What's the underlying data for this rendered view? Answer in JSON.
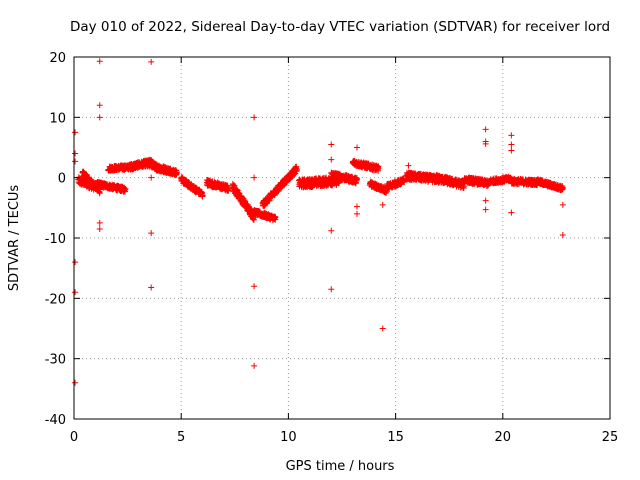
{
  "chart_data": {
    "type": "scatter",
    "title": "Day 010 of 2022, Sidereal Day-to-day VTEC variation (SDTVAR) for receiver lord",
    "xlabel": "GPS time / hours",
    "ylabel": "SDTVAR / TECUs",
    "xlim": [
      0,
      25
    ],
    "ylim": [
      -40,
      20
    ],
    "xticks": [
      0,
      5,
      10,
      15,
      20,
      25
    ],
    "yticks": [
      -40,
      -30,
      -20,
      -10,
      0,
      10,
      20
    ],
    "grid": true,
    "marker": "+",
    "color": "#ff0000",
    "series": [
      {
        "name": "SDTVAR",
        "segments": [
          {
            "x0": 0.2,
            "x1": 1.0,
            "y0": -0.5,
            "y1": -1.5,
            "spread": 1.2
          },
          {
            "x0": 0.4,
            "x1": 1.2,
            "y0": 0.8,
            "y1": -2.2,
            "spread": 0.8
          },
          {
            "x0": 1.0,
            "x1": 2.4,
            "y0": -1.0,
            "y1": -2.0,
            "spread": 0.8
          },
          {
            "x0": 1.6,
            "x1": 2.8,
            "y0": 1.5,
            "y1": 1.8,
            "spread": 0.8
          },
          {
            "x0": 2.6,
            "x1": 3.7,
            "y0": 1.8,
            "y1": 2.6,
            "spread": 1.0
          },
          {
            "x0": 3.4,
            "x1": 4.8,
            "y0": 2.3,
            "y1": 0.8,
            "spread": 0.9
          },
          {
            "x0": 3.8,
            "x1": 4.5,
            "y0": 1.5,
            "y1": 1.0,
            "spread": 0.7
          },
          {
            "x0": 5.0,
            "x1": 6.0,
            "y0": -0.3,
            "y1": -2.8,
            "spread": 0.9
          },
          {
            "x0": 6.2,
            "x1": 7.2,
            "y0": -0.8,
            "y1": -1.8,
            "spread": 1.0
          },
          {
            "x0": 7.4,
            "x1": 8.4,
            "y0": -1.5,
            "y1": -6.5,
            "spread": 1.2
          },
          {
            "x0": 8.2,
            "x1": 9.4,
            "y0": -5.5,
            "y1": -6.8,
            "spread": 0.8
          },
          {
            "x0": 8.8,
            "x1": 10.4,
            "y0": -4.5,
            "y1": 1.5,
            "spread": 1.0
          },
          {
            "x0": 10.5,
            "x1": 12.4,
            "y0": -1.0,
            "y1": -0.5,
            "spread": 1.4
          },
          {
            "x0": 12.0,
            "x1": 13.2,
            "y0": 0.5,
            "y1": -0.5,
            "spread": 1.0
          },
          {
            "x0": 13.0,
            "x1": 14.2,
            "y0": 2.5,
            "y1": 1.5,
            "spread": 0.9
          },
          {
            "x0": 13.8,
            "x1": 14.6,
            "y0": -1.0,
            "y1": -2.2,
            "spread": 0.8
          },
          {
            "x0": 14.6,
            "x1": 15.4,
            "y0": -1.5,
            "y1": -0.5,
            "spread": 0.9
          },
          {
            "x0": 15.5,
            "x1": 17.0,
            "y0": 0.3,
            "y1": -0.3,
            "spread": 1.2
          },
          {
            "x0": 16.8,
            "x1": 18.2,
            "y0": 0.0,
            "y1": -1.2,
            "spread": 1.2
          },
          {
            "x0": 18.2,
            "x1": 19.4,
            "y0": -0.3,
            "y1": -1.0,
            "spread": 1.0
          },
          {
            "x0": 19.4,
            "x1": 20.4,
            "y0": -0.6,
            "y1": -0.2,
            "spread": 0.8
          },
          {
            "x0": 20.4,
            "x1": 21.6,
            "y0": -0.6,
            "y1": -0.8,
            "spread": 0.9
          },
          {
            "x0": 21.6,
            "x1": 22.8,
            "y0": -0.6,
            "y1": -1.8,
            "spread": 0.8
          }
        ],
        "outliers": [
          [
            0.05,
            7.5
          ],
          [
            0.05,
            4.0
          ],
          [
            0.05,
            2.7
          ],
          [
            0.05,
            -14.0
          ],
          [
            0.05,
            -19.0
          ],
          [
            0.05,
            -34.0
          ],
          [
            1.2,
            19.3
          ],
          [
            1.2,
            12.0
          ],
          [
            1.2,
            10.0
          ],
          [
            1.2,
            -7.5
          ],
          [
            1.2,
            -8.5
          ],
          [
            3.6,
            19.2
          ],
          [
            3.6,
            -9.2
          ],
          [
            3.6,
            -18.2
          ],
          [
            3.6,
            0.0
          ],
          [
            8.4,
            10.0
          ],
          [
            8.4,
            0.0
          ],
          [
            8.4,
            -18.0
          ],
          [
            8.4,
            -31.2
          ],
          [
            12.0,
            5.5
          ],
          [
            12.0,
            3.0
          ],
          [
            12.0,
            -8.8
          ],
          [
            12.0,
            -18.5
          ],
          [
            13.2,
            5.0
          ],
          [
            13.2,
            -4.8
          ],
          [
            13.2,
            -6.0
          ],
          [
            14.4,
            -4.5
          ],
          [
            14.4,
            -25.0
          ],
          [
            15.6,
            2.0
          ],
          [
            19.2,
            8.0
          ],
          [
            19.2,
            6.0
          ],
          [
            19.2,
            5.6
          ],
          [
            19.2,
            -3.8
          ],
          [
            19.2,
            -5.3
          ],
          [
            20.4,
            7.0
          ],
          [
            20.4,
            5.5
          ],
          [
            20.4,
            4.5
          ],
          [
            20.4,
            -5.8
          ],
          [
            22.8,
            -4.5
          ],
          [
            22.8,
            -9.5
          ]
        ]
      }
    ]
  }
}
